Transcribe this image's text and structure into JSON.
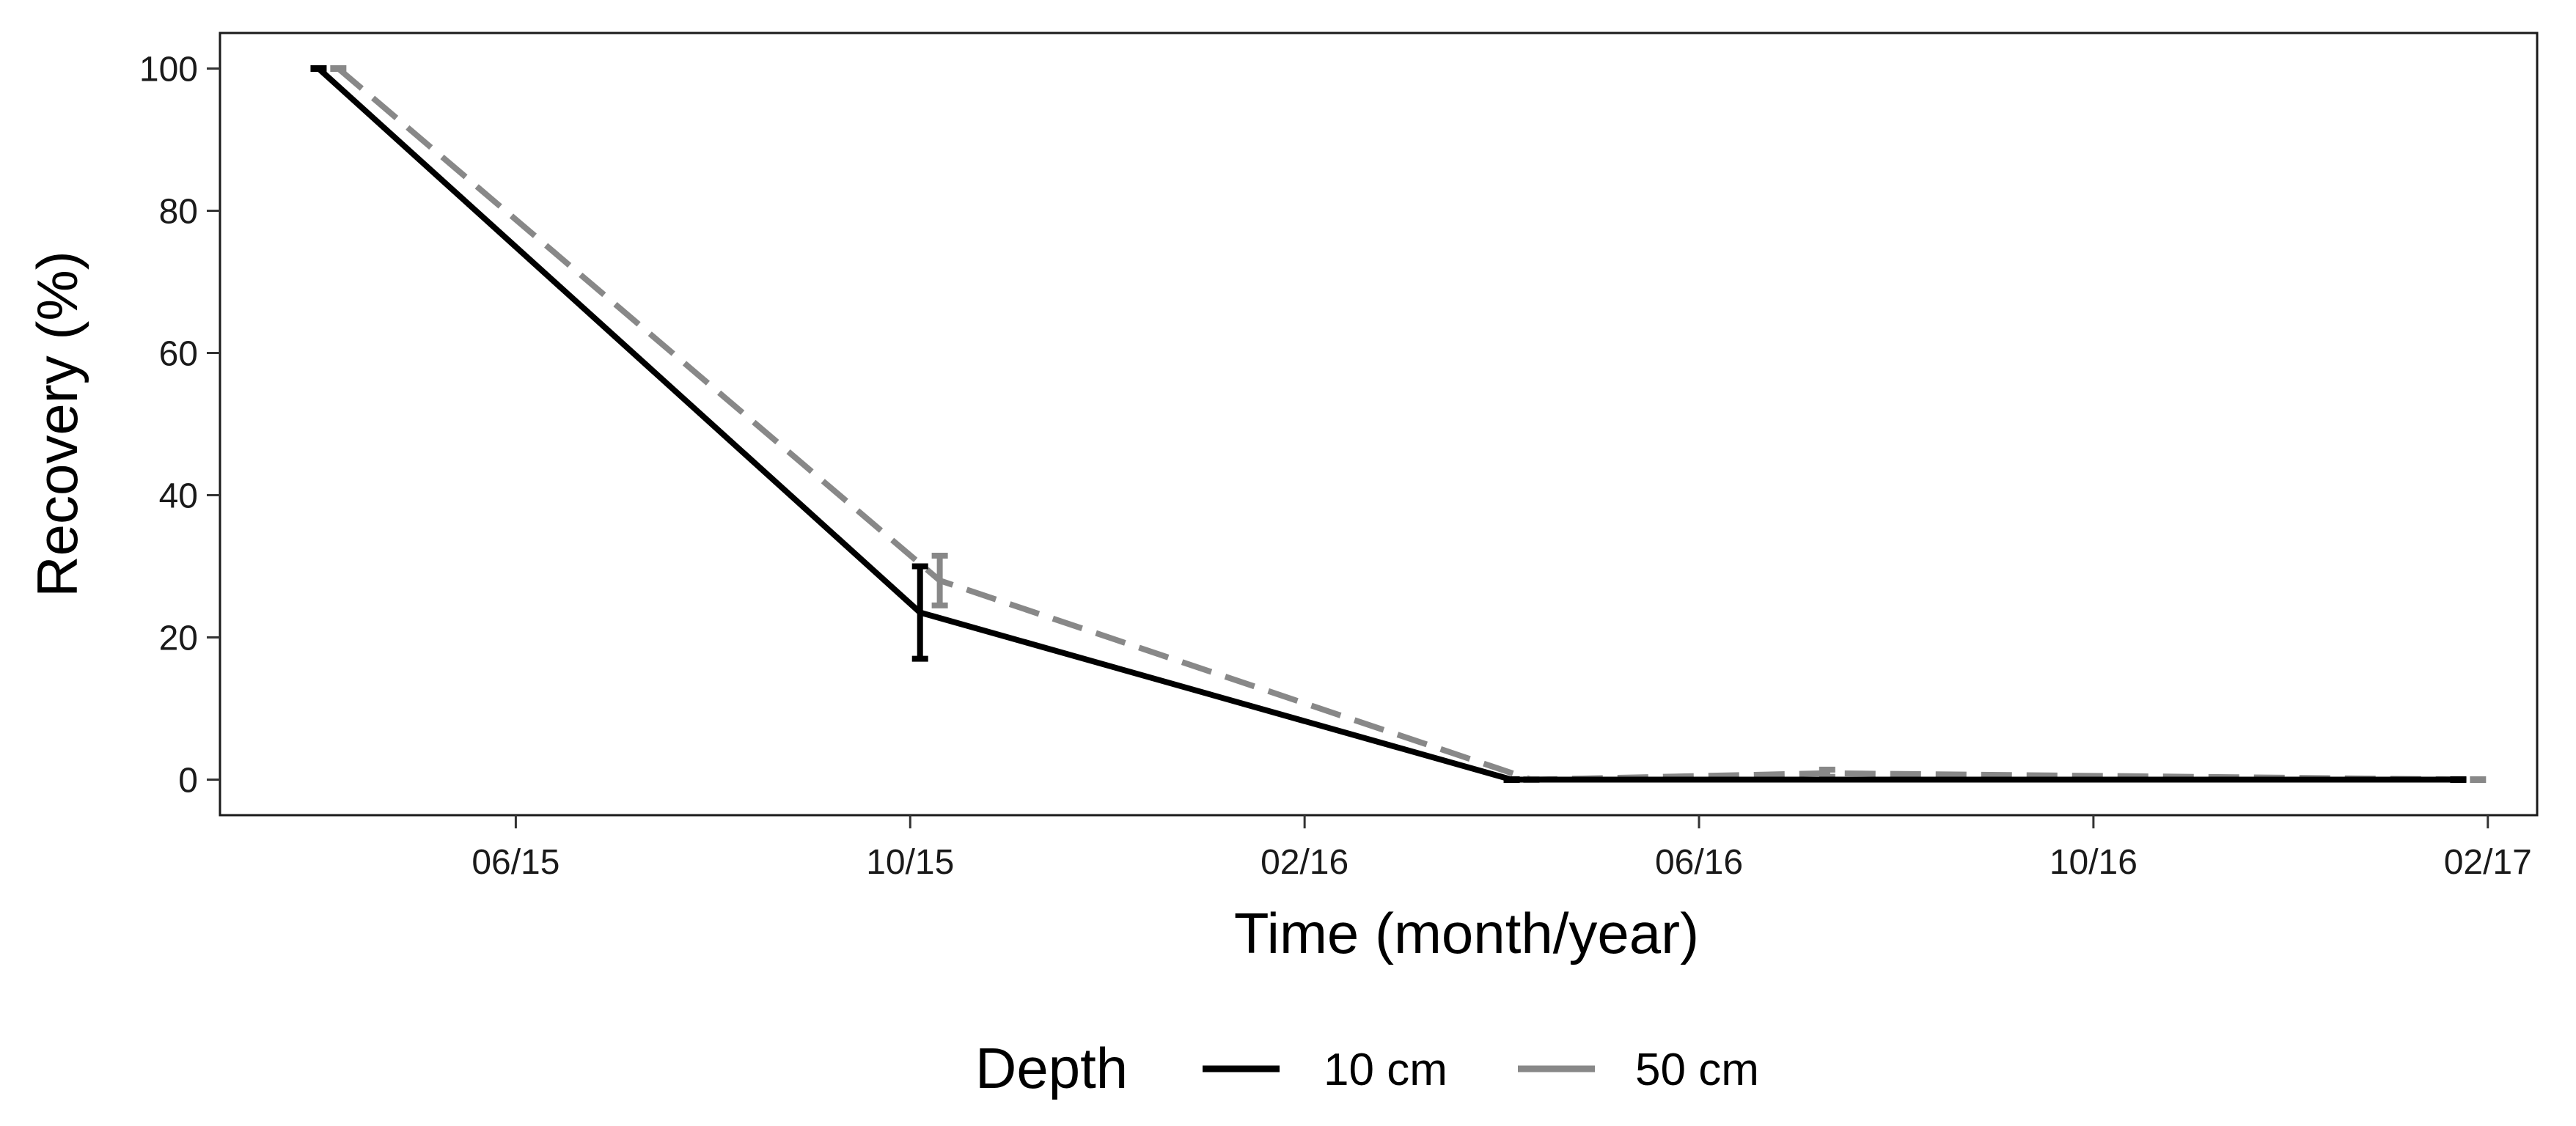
{
  "chart_data": {
    "type": "line",
    "title": "",
    "xlabel": "Time (month/year)",
    "ylabel": "Recovery (%)",
    "grid": false,
    "legend_position": "bottom",
    "legend_title": "Depth",
    "x_type": "date",
    "x_tick_labels": [
      "06/15",
      "10/15",
      "02/16",
      "06/16",
      "10/16",
      "02/17"
    ],
    "y_ticks": [
      0,
      20,
      40,
      60,
      80,
      100
    ],
    "ylim": [
      -5,
      105
    ],
    "xlim": [
      2.0,
      25.5
    ],
    "series": [
      {
        "name": "10 cm",
        "color": "#000000",
        "dash": "solid",
        "x": [
          3.0,
          9.1,
          15.1,
          24.7
        ],
        "y": [
          100,
          23.5,
          0,
          0
        ],
        "error": [
          0,
          6.5,
          0,
          0
        ]
      },
      {
        "name": "50 cm",
        "color": "#888888",
        "dash": "dashed",
        "x": [
          3.2,
          9.3,
          15.3,
          18.3,
          24.9
        ],
        "y": [
          100,
          28,
          0,
          0.9,
          0
        ],
        "error": [
          0,
          3.5,
          0,
          0.5,
          0
        ]
      }
    ]
  }
}
